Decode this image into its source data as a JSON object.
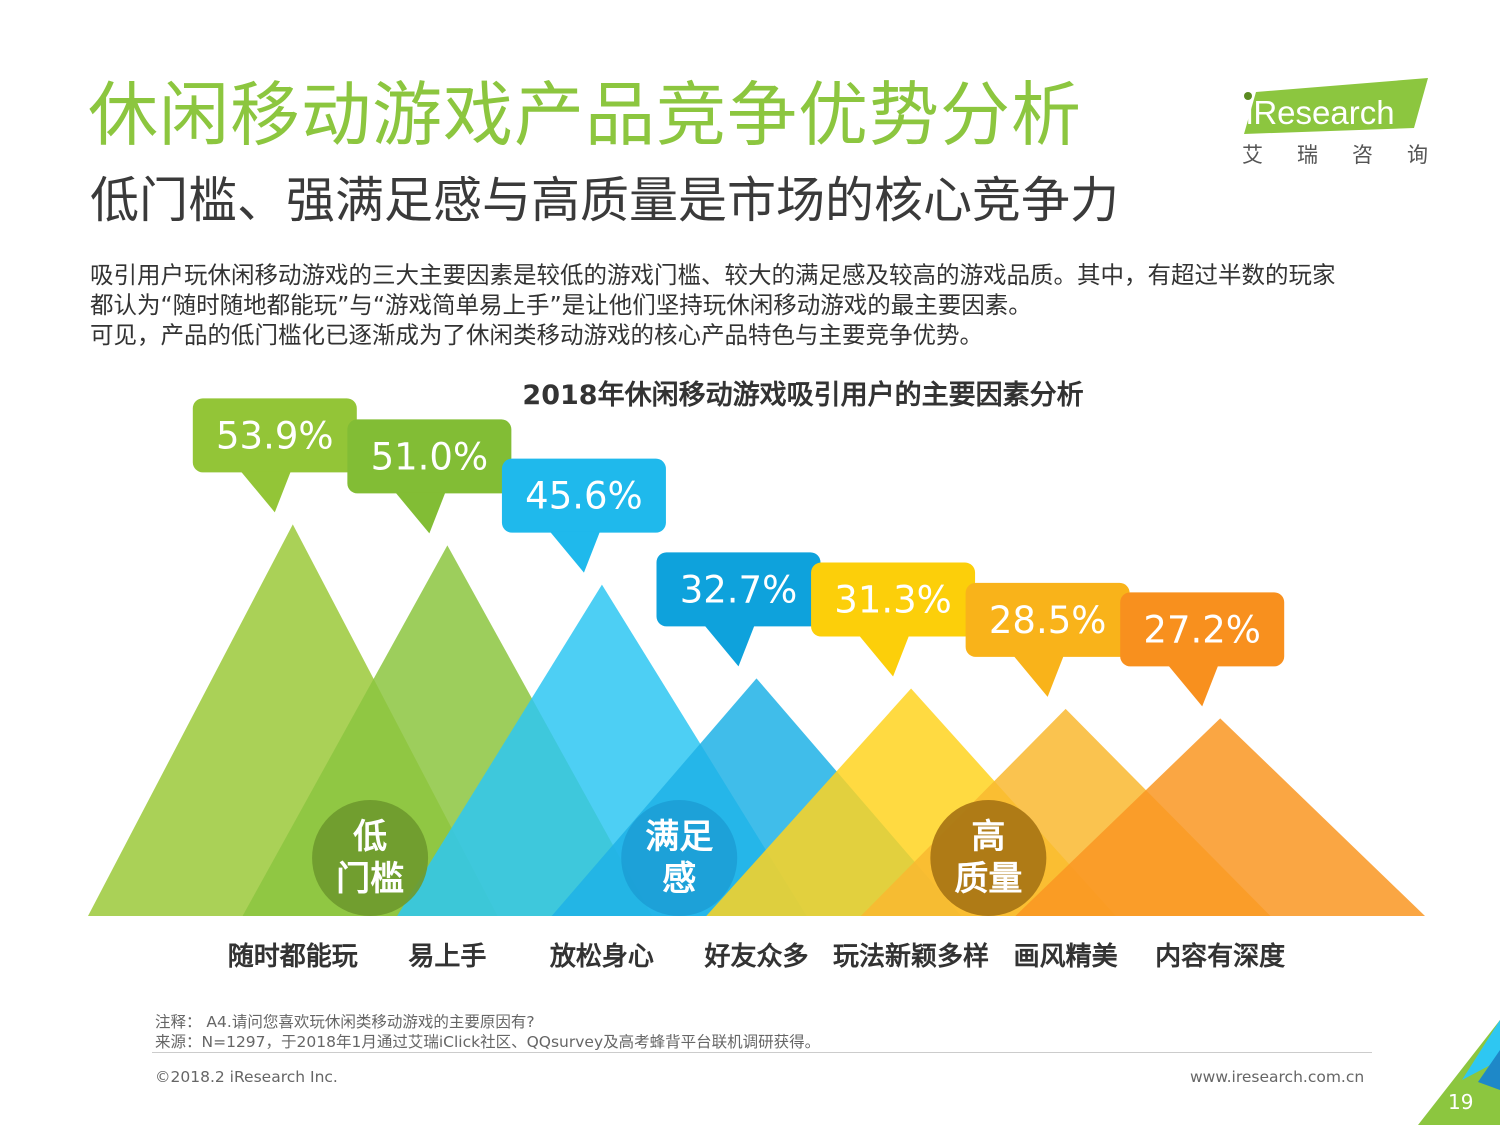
{
  "header": {
    "title": "休闲移动游戏产品竞争优势分析",
    "subtitle": "低门槛、强满足感与高质量是市场的核心竞争力"
  },
  "logo": {
    "name": "iResearch",
    "tagline_chars": [
      "艾",
      "瑞",
      "咨",
      "询"
    ],
    "icon": "iresearch-logo-icon",
    "color": "#8cc63f"
  },
  "intro": {
    "lines": [
      "吸引用户玩休闲移动游戏的三大主要因素是较低的游戏门槛、较大的满足感及较高的游戏品质。其中，有超过半数的玩家",
      "都认为“随时随地都能玩”与“游戏简单易上手”是让他们坚持玩休闲移动游戏的最主要因素。",
      "可见，产品的低门槛化已逐渐成为了休闲类移动游戏的核心产品特色与主要竞争优势。"
    ]
  },
  "chart_data": {
    "type": "bar",
    "title": "2018年休闲移动游戏吸引用户的主要因素分析",
    "categories": [
      "随时都能玩",
      "易上手",
      "放松身心",
      "好友众多",
      "玩法新颖多样",
      "画风精美",
      "内容有深度"
    ],
    "values": [
      53.9,
      51.0,
      45.6,
      32.7,
      31.3,
      28.5,
      27.2
    ],
    "value_labels": [
      "53.9%",
      "51.0%",
      "45.6%",
      "32.7%",
      "31.3%",
      "28.5%",
      "27.2%"
    ],
    "unit": "%",
    "colors": [
      "#9bc93a",
      "#8cc63f",
      "#2ec7f2",
      "#1fb1e6",
      "#ffd320",
      "#f9b930",
      "#f99622"
    ],
    "bubble_colors": [
      "#93c537",
      "#82bd35",
      "#1fb9ec",
      "#0ea2dc",
      "#fccf0a",
      "#f9b31a",
      "#f8901e"
    ],
    "groups": [
      {
        "label_lines": [
          "低",
          "门槛"
        ],
        "members": [
          0,
          1
        ],
        "color": "#6f9a2e"
      },
      {
        "label_lines": [
          "满足",
          "感"
        ],
        "members": [
          2,
          3
        ],
        "color": "#1c9fd6"
      },
      {
        "label_lines": [
          "高",
          "质量"
        ],
        "members": [
          4,
          5,
          6
        ],
        "color": "#a87514"
      }
    ],
    "grid": false,
    "legend": "none"
  },
  "footer": {
    "note": "注释：  A4.请问您喜欢玩休闲类移动游戏的主要原因有?",
    "source": "来源：N=1297，于2018年1月通过艾瑞iClick社区、QQsurvey及高考蜂背平台联机调研获得。",
    "copyright": "©2018.2 iResearch Inc.",
    "website": "www.iresearch.com.cn",
    "page_number": "19"
  }
}
